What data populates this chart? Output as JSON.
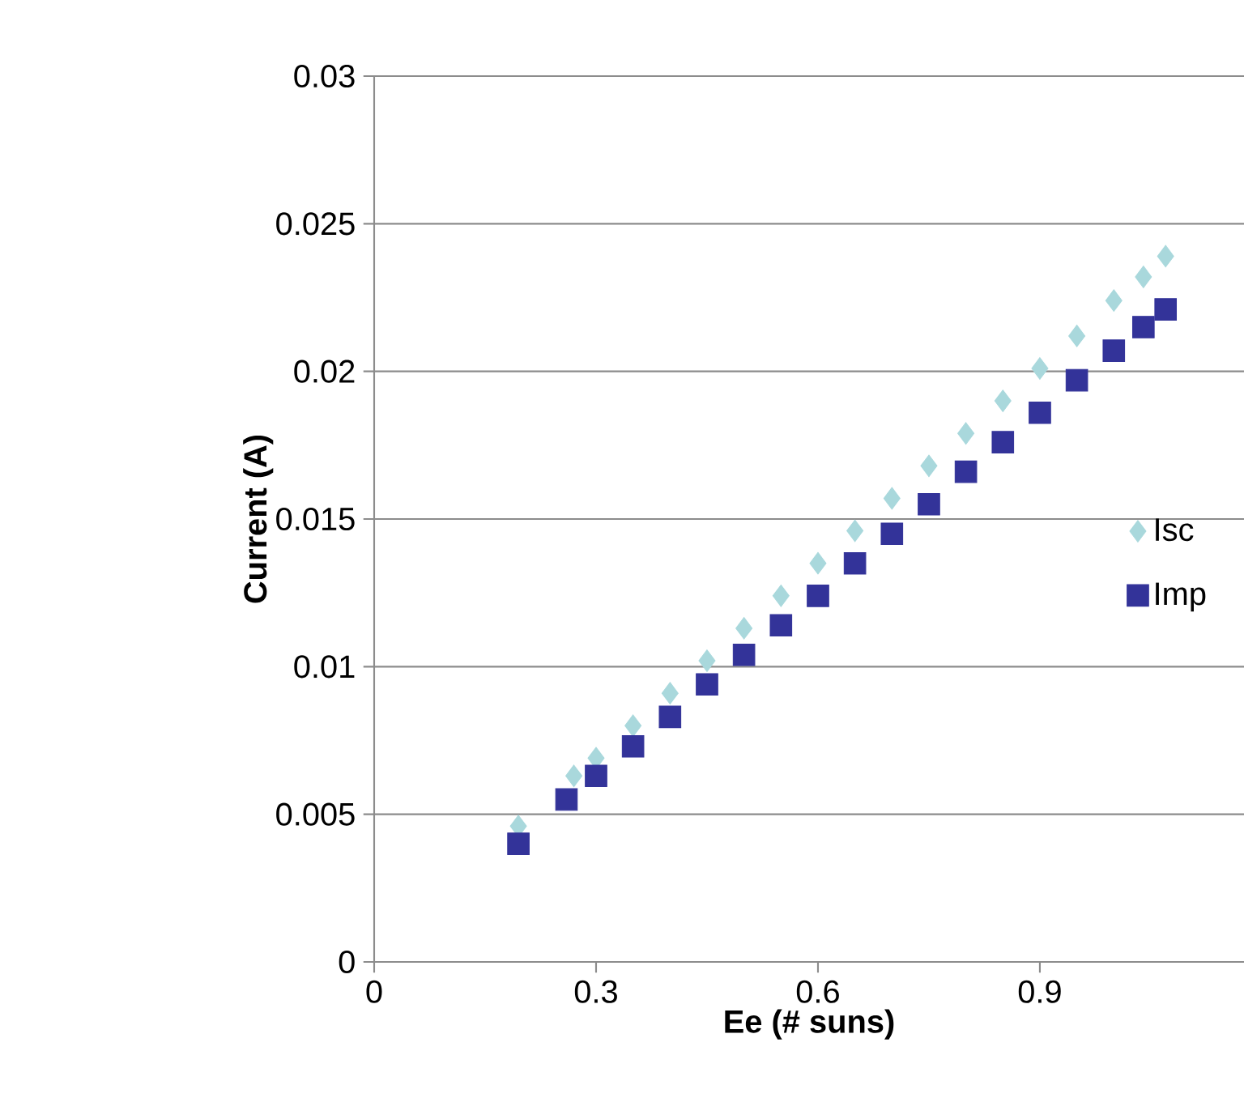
{
  "chart_data": {
    "type": "scatter",
    "xlabel": "Ee (# suns)",
    "ylabel": "Current (A)",
    "xlim": [
      0,
      1.176
    ],
    "xticks": [
      0,
      0.3,
      0.6,
      0.9
    ],
    "ylim": [
      0,
      0.03
    ],
    "yticks": [
      0,
      0.005,
      0.01,
      0.015,
      0.02,
      0.025,
      0.03
    ],
    "grid": "y",
    "legend": "right",
    "series": [
      {
        "name": "Isc",
        "color": "#a9d8dc",
        "marker": "diamond",
        "x": [
          0.195,
          0.27,
          0.3,
          0.35,
          0.4,
          0.45,
          0.5,
          0.55,
          0.6,
          0.65,
          0.7,
          0.75,
          0.8,
          0.85,
          0.9,
          0.95,
          1.0,
          1.04,
          1.07
        ],
        "values": [
          0.0046,
          0.0063,
          0.0069,
          0.008,
          0.0091,
          0.0102,
          0.0113,
          0.0124,
          0.0135,
          0.0146,
          0.0157,
          0.0168,
          0.0179,
          0.019,
          0.0201,
          0.0212,
          0.0224,
          0.0232,
          0.0239
        ]
      },
      {
        "name": "Imp",
        "color": "#333399",
        "marker": "square",
        "x": [
          0.195,
          0.26,
          0.3,
          0.35,
          0.4,
          0.45,
          0.5,
          0.55,
          0.6,
          0.65,
          0.7,
          0.75,
          0.8,
          0.85,
          0.9,
          0.95,
          1.0,
          1.04,
          1.07
        ],
        "values": [
          0.004,
          0.0055,
          0.0063,
          0.0073,
          0.0083,
          0.0094,
          0.0104,
          0.0114,
          0.0124,
          0.0135,
          0.0145,
          0.0155,
          0.0166,
          0.0176,
          0.0186,
          0.0197,
          0.0207,
          0.0215,
          0.0221
        ]
      }
    ]
  }
}
